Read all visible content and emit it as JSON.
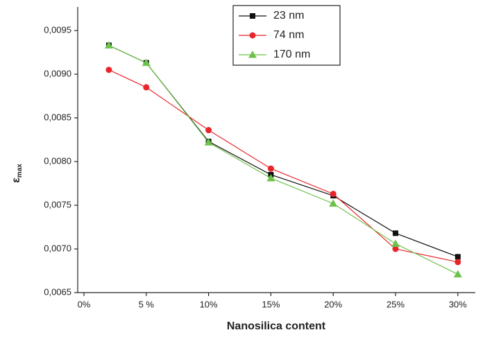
{
  "chart_data": {
    "type": "line",
    "x_label": "Nanosilica content",
    "y_label": "ε",
    "y_label_sub": "max",
    "x": [
      2,
      5,
      10,
      15,
      20,
      25,
      30
    ],
    "series": [
      {
        "name": "23 nm",
        "color": "#111111",
        "marker": "square",
        "values": [
          0.00933,
          0.00913,
          0.00823,
          0.00785,
          0.00761,
          0.00718,
          0.00691
        ]
      },
      {
        "name": "74 nm",
        "color": "#e8252a",
        "marker": "circle",
        "values": [
          0.00905,
          0.00885,
          0.00836,
          0.00792,
          0.00763,
          0.007,
          0.00685
        ]
      },
      {
        "name": "170 nm",
        "color": "#6cc24a",
        "marker": "triangle",
        "values": [
          0.00933,
          0.00913,
          0.00822,
          0.00781,
          0.00752,
          0.00706,
          0.00671
        ]
      }
    ],
    "xlim": [
      -0.5,
      31.4
    ],
    "xticks": [
      {
        "value": 0,
        "label": "0%"
      },
      {
        "value": 5,
        "label": "5 %"
      },
      {
        "value": 10,
        "label": "10%"
      },
      {
        "value": 15,
        "label": "15%"
      },
      {
        "value": 20,
        "label": "20%"
      },
      {
        "value": 25,
        "label": "25%"
      },
      {
        "value": 30,
        "label": "30%"
      }
    ],
    "ylim": [
      0.0065,
      0.00977
    ],
    "yticks": [
      {
        "value": 0.0065,
        "label": "0,0065"
      },
      {
        "value": 0.007,
        "label": "0,0070"
      },
      {
        "value": 0.0075,
        "label": "0,0075"
      },
      {
        "value": 0.008,
        "label": "0,0080"
      },
      {
        "value": 0.0085,
        "label": "0,0085"
      },
      {
        "value": 0.009,
        "label": "0,0090"
      },
      {
        "value": 0.0095,
        "label": "0,0095"
      }
    ],
    "legend": "top-center"
  }
}
